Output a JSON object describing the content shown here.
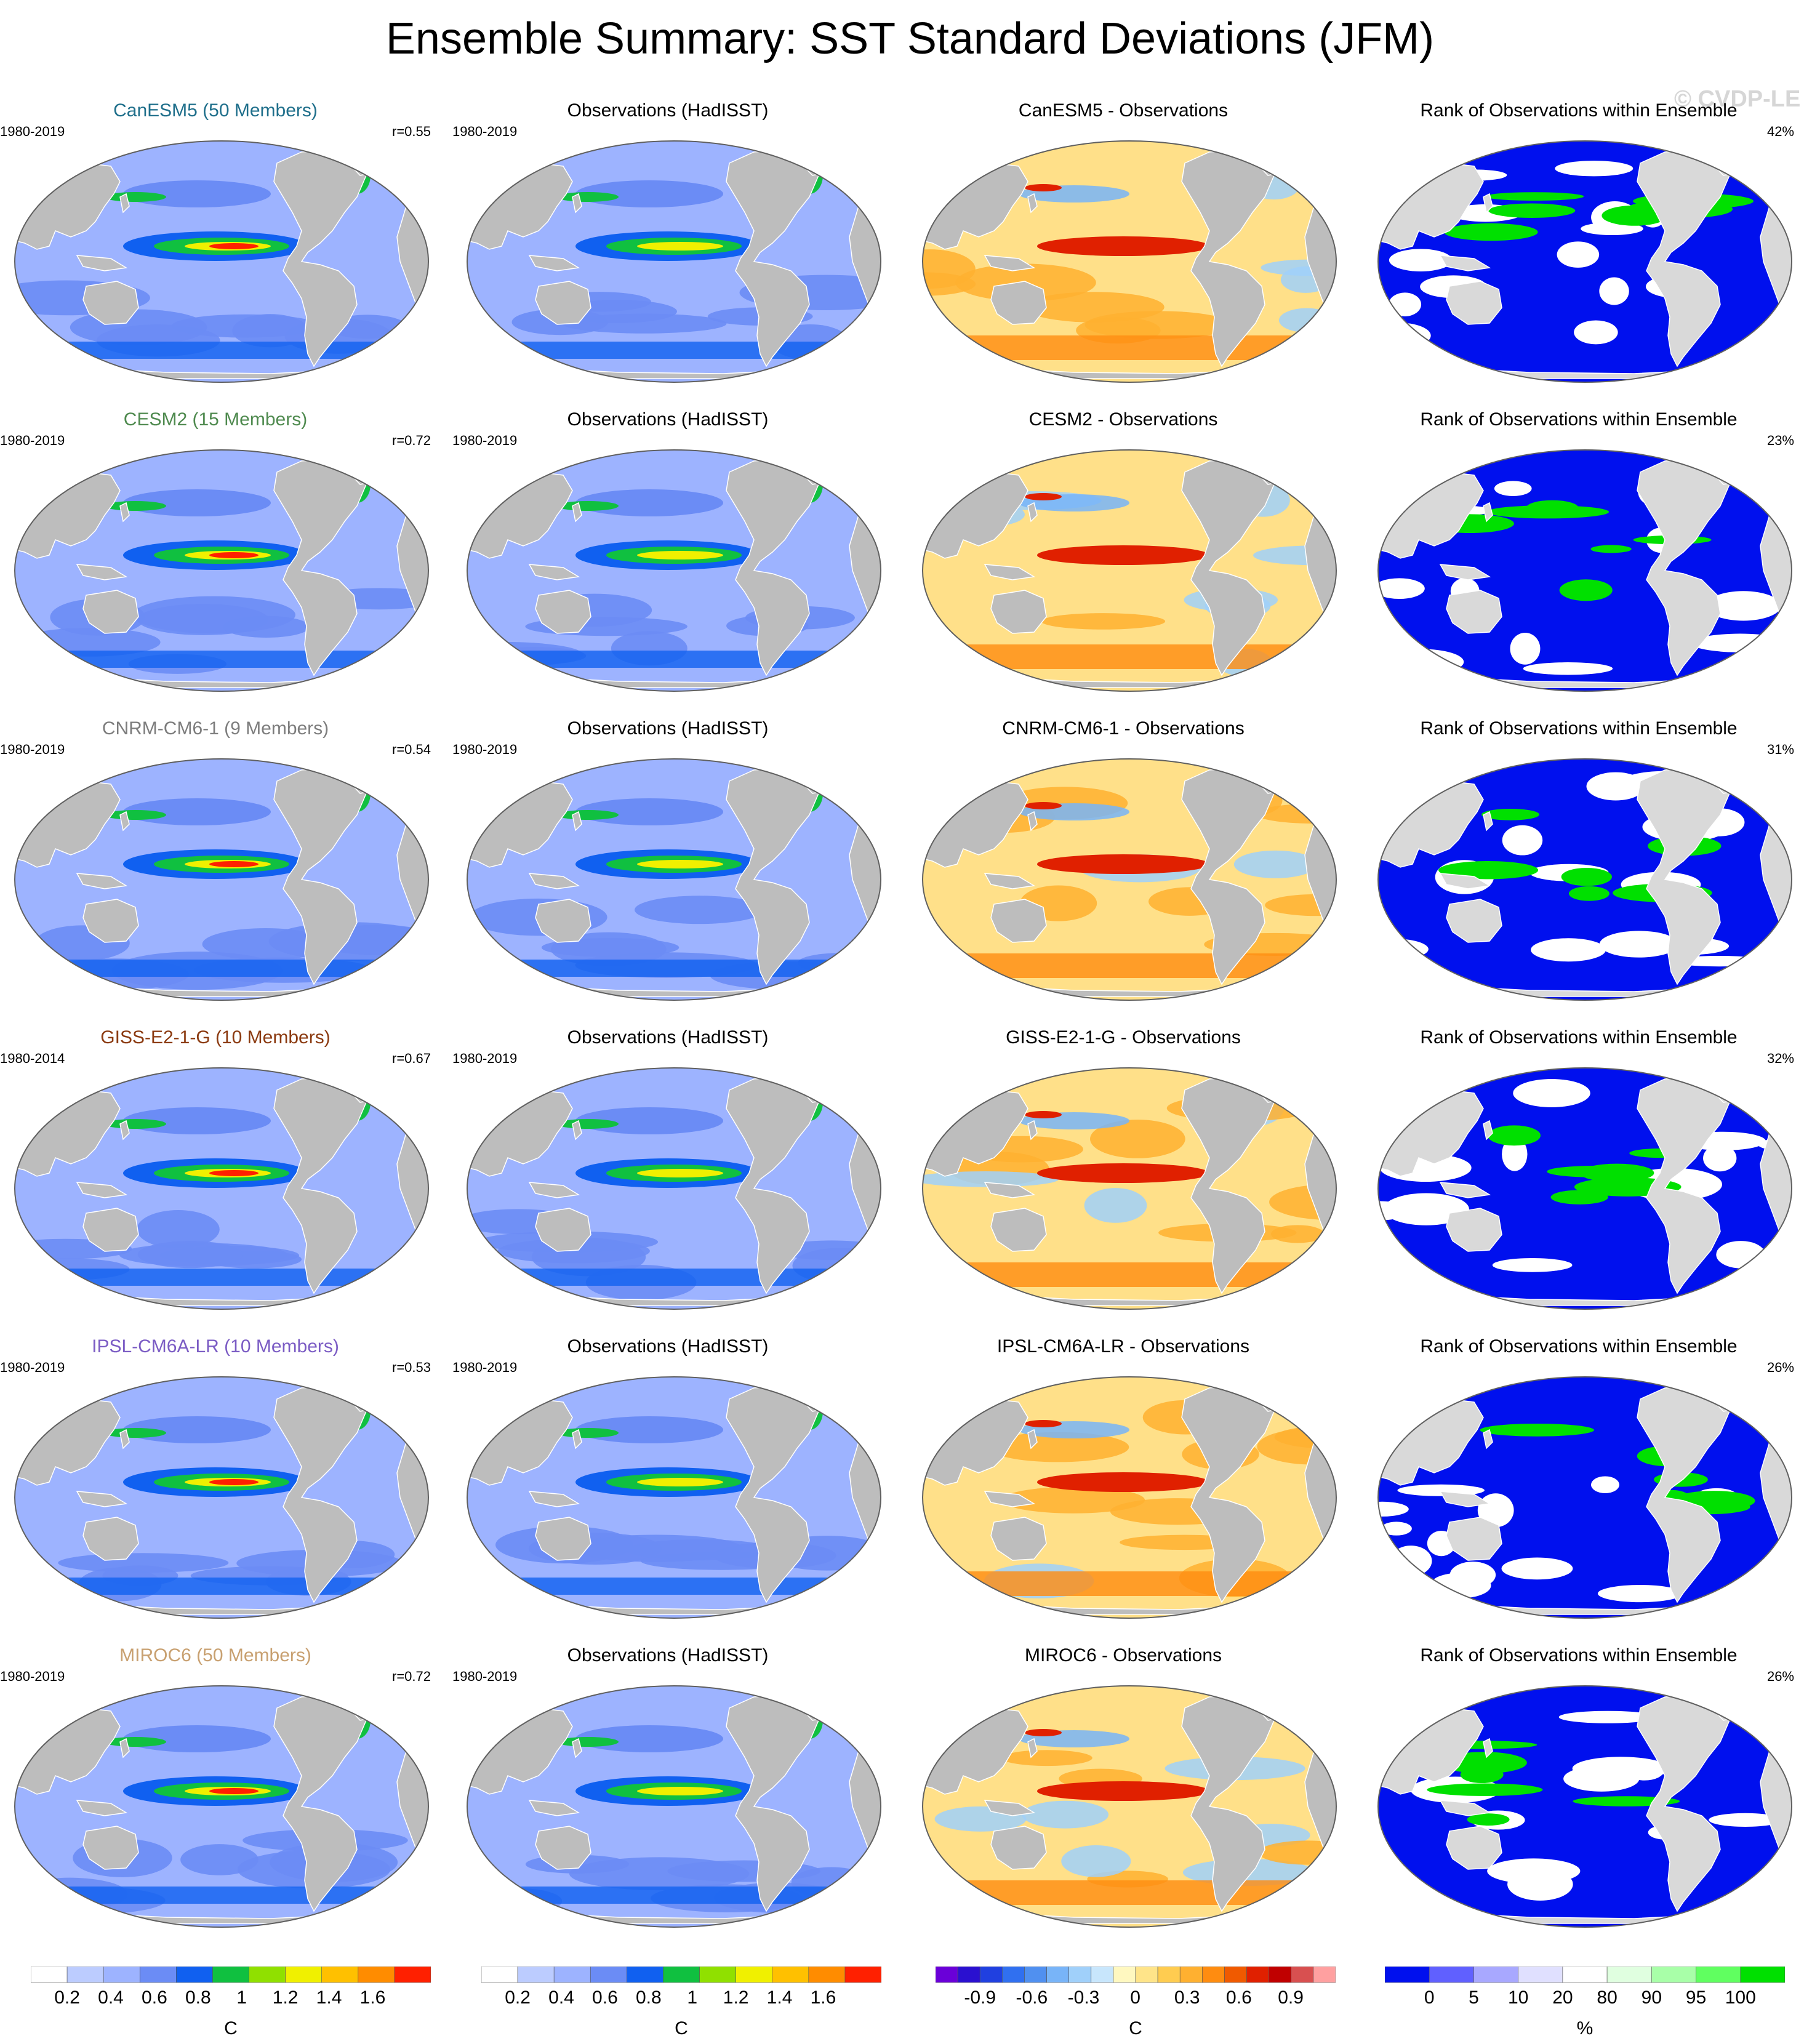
{
  "title": "Ensemble Summary: SST Standard Deviations (JFM)",
  "watermark": "© CVDP-LE",
  "colors": {
    "land": "#bdbdbd",
    "land_light": "#d9d9d9",
    "sd_ocean": "#9db3ff",
    "diff_ocean": "#ffe089",
    "rank_ocean": "#0010ee"
  },
  "rows": [
    {
      "model": "CanESM5 (50 Members)",
      "model_color": "#1f6f8b",
      "model_period": "1980-2019",
      "r": "r=0.55",
      "obs_title": "Observations (HadISST)",
      "obs_period": "1980-2019",
      "diff_title": "CanESM5 - Observations",
      "rank_title": "Rank of Observations within Ensemble",
      "rank_pct": "42%"
    },
    {
      "model": "CESM2 (15 Members)",
      "model_color": "#4f8a4f",
      "model_period": "1980-2019",
      "r": "r=0.72",
      "obs_title": "Observations (HadISST)",
      "obs_period": "1980-2019",
      "diff_title": "CESM2 - Observations",
      "rank_title": "Rank of Observations within Ensemble",
      "rank_pct": "23%"
    },
    {
      "model": "CNRM-CM6-1 (9 Members)",
      "model_color": "#7d7d7d",
      "model_period": "1980-2019",
      "r": "r=0.54",
      "obs_title": "Observations (HadISST)",
      "obs_period": "1980-2019",
      "diff_title": "CNRM-CM6-1 - Observations",
      "rank_title": "Rank of Observations within Ensemble",
      "rank_pct": "31%"
    },
    {
      "model": "GISS-E2-1-G (10 Members)",
      "model_color": "#8b3a10",
      "model_period": "1980-2014",
      "r": "r=0.67",
      "obs_title": "Observations (HadISST)",
      "obs_period": "1980-2019",
      "diff_title": "GISS-E2-1-G - Observations",
      "rank_title": "Rank of Observations within Ensemble",
      "rank_pct": "32%"
    },
    {
      "model": "IPSL-CM6A-LR (10 Members)",
      "model_color": "#7b5cc4",
      "model_period": "1980-2019",
      "r": "r=0.53",
      "obs_title": "Observations (HadISST)",
      "obs_period": "1980-2019",
      "diff_title": "IPSL-CM6A-LR - Observations",
      "rank_title": "Rank of Observations within Ensemble",
      "rank_pct": "26%"
    },
    {
      "model": "MIROC6 (50 Members)",
      "model_color": "#c8a070",
      "model_period": "1980-2019",
      "r": "r=0.72",
      "obs_title": "Observations (HadISST)",
      "obs_period": "1980-2019",
      "diff_title": "MIROC6 - Observations",
      "rank_title": "Rank of Observations within Ensemble",
      "rank_pct": "26%"
    }
  ],
  "colorbars": [
    {
      "unit": "C",
      "colors": [
        "#ffffff",
        "#bcccff",
        "#9db3ff",
        "#6b8cf5",
        "#1060f0",
        "#10c040",
        "#90e000",
        "#f0f000",
        "#ffc000",
        "#ff8c00",
        "#ff2000"
      ],
      "labels": [
        "0.2",
        "0.4",
        "0.6",
        "0.8",
        "1",
        "1.2",
        "1.4",
        "1.6"
      ]
    },
    {
      "unit": "C",
      "colors": [
        "#ffffff",
        "#bcccff",
        "#9db3ff",
        "#6b8cf5",
        "#1060f0",
        "#10c040",
        "#90e000",
        "#f0f000",
        "#ffc000",
        "#ff8c00",
        "#ff2000"
      ],
      "labels": [
        "0.2",
        "0.4",
        "0.6",
        "0.8",
        "1",
        "1.2",
        "1.4",
        "1.6"
      ]
    },
    {
      "unit": "C",
      "colors": [
        "#6a00d8",
        "#2a10d0",
        "#2040e0",
        "#3070f0",
        "#5090f0",
        "#78b4f8",
        "#a0d0fa",
        "#c8e6fc",
        "#fff8c0",
        "#ffe489",
        "#ffcc50",
        "#ffb030",
        "#ff8c10",
        "#f05a00",
        "#e02000",
        "#c00000",
        "#d85050",
        "#ffa0a0"
      ],
      "labels": [
        "-0.9",
        "-0.6",
        "-0.3",
        "0",
        "0.3",
        "0.6",
        "0.9"
      ]
    },
    {
      "unit": "%",
      "colors": [
        "#0010ee",
        "#6060ff",
        "#a8a8ff",
        "#e0e0ff",
        "#ffffff",
        "#e0ffe0",
        "#a8ffa8",
        "#60ff60",
        "#00e000"
      ],
      "labels": [
        "0",
        "5",
        "10",
        "20",
        "80",
        "90",
        "95",
        "100"
      ]
    }
  ]
}
